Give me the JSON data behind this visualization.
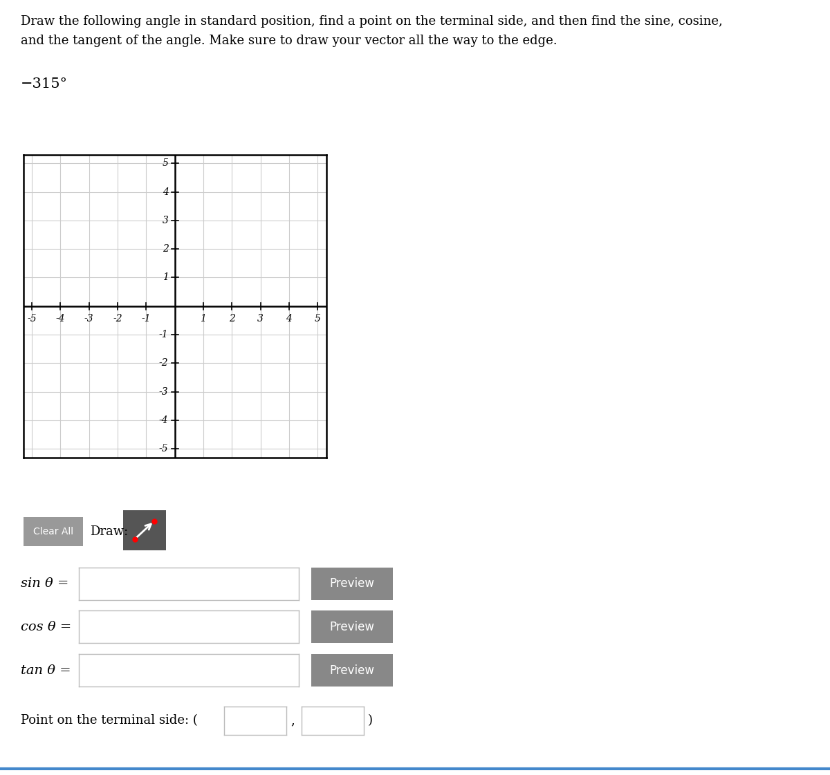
{
  "title_line1": "Draw the following angle in standard position, find a point on the terminal side, and then find the sine, cosine,",
  "title_line2": "and the tangent of the angle. Make sure to draw your vector all the way to the edge.",
  "angle_label": "−315°",
  "grid_min": -5,
  "grid_max": 5,
  "grid_color": "#cccccc",
  "axis_color": "#000000",
  "background_color": "#ffffff",
  "arrow_color": "#000000",
  "sin_label": "sin θ =",
  "cos_label": "cos θ =",
  "tan_label": "tan θ =",
  "preview_button_color": "#888888",
  "preview_text_color": "#ffffff",
  "clear_button_color": "#999999",
  "draw_button_color": "#555555",
  "point_label": "Point on the terminal side: (",
  "fig_width": 12.0,
  "fig_height": 11.21,
  "input_box_color": "#ffffff",
  "input_box_edge": "#bbbbbb"
}
